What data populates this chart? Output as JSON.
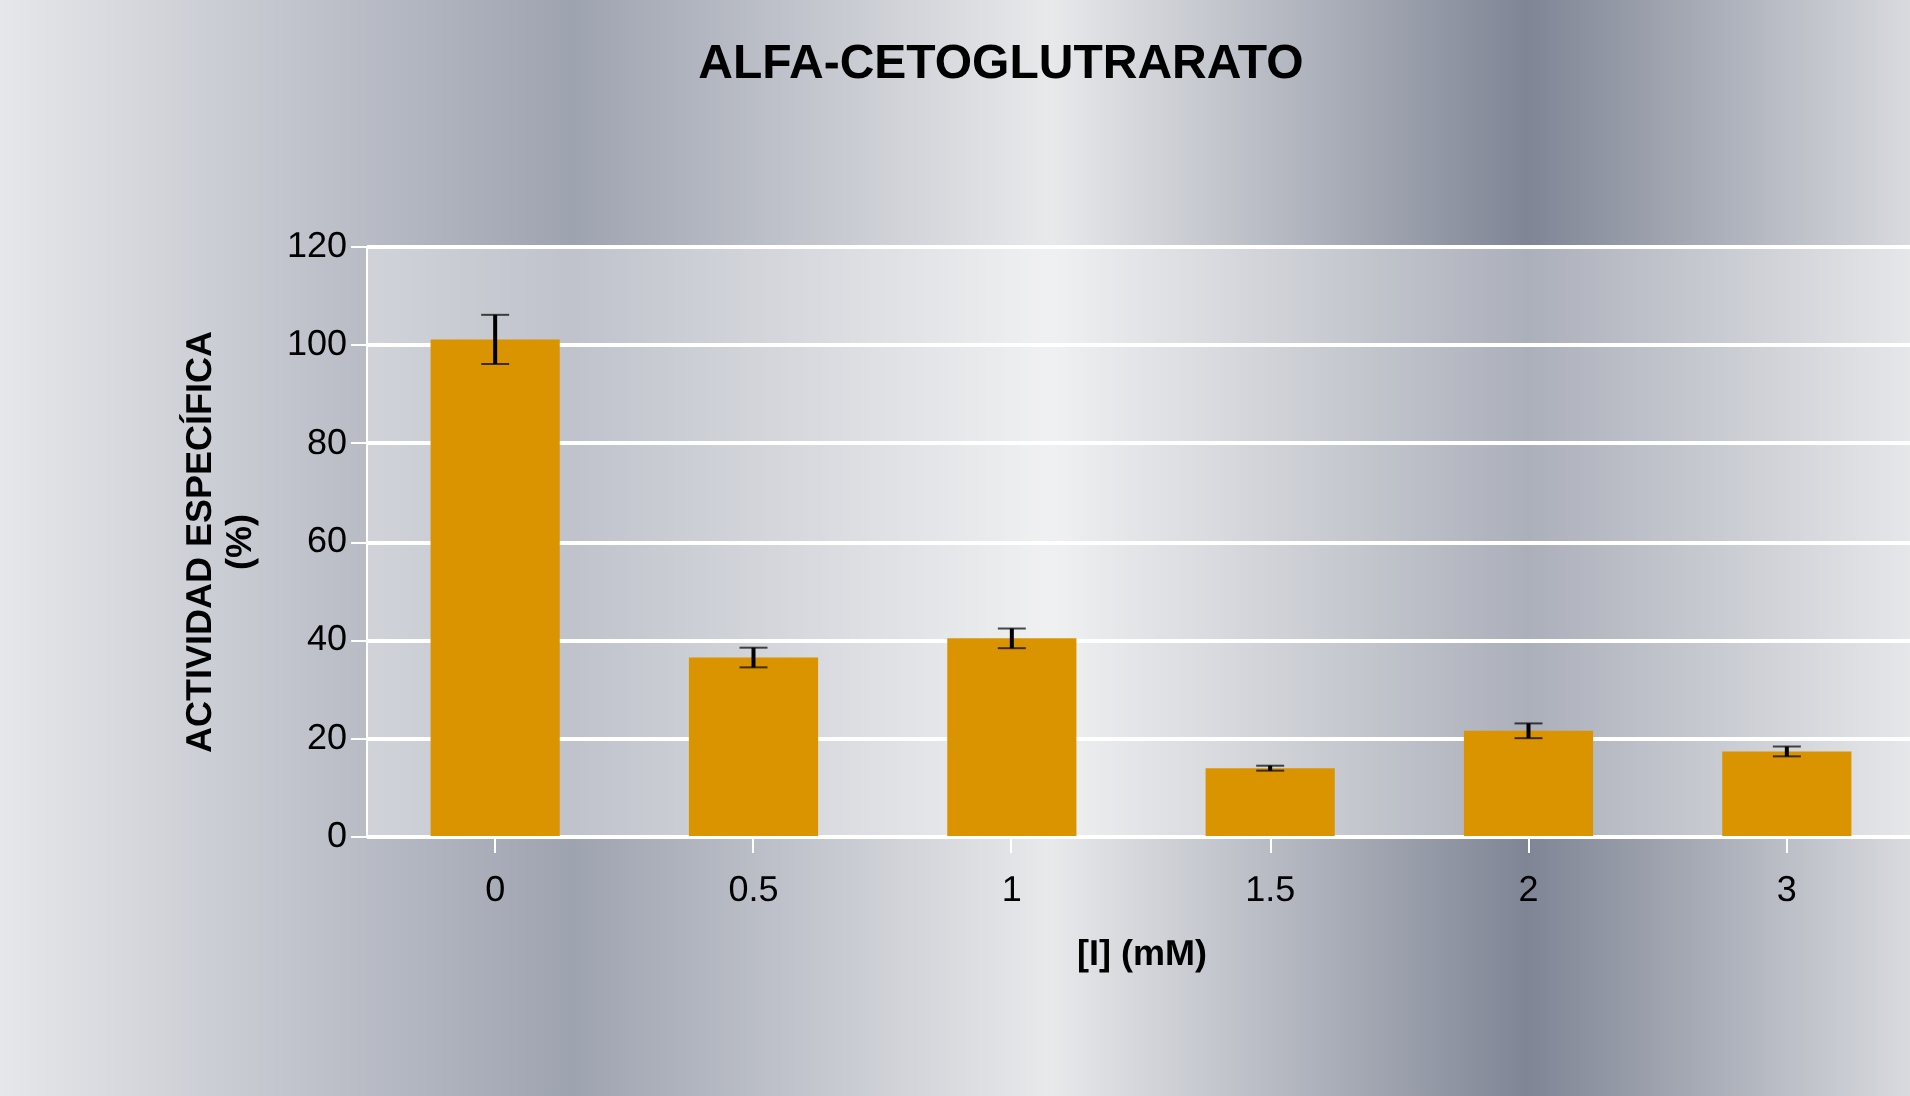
{
  "chart_data": {
    "type": "bar",
    "title": "ALFA-CETOGLUTRARATO",
    "xlabel": "[I] (mM)",
    "ylabel": "ACTIVIDAD ESPECÍFICA (%)",
    "categories": [
      "0",
      "0.5",
      "1",
      "1.5",
      "2",
      "3"
    ],
    "values": [
      101,
      36.3,
      40.2,
      13.8,
      21.4,
      17.2
    ],
    "errors": [
      5,
      2,
      2,
      0.5,
      1.5,
      1
    ],
    "color": "#d99400",
    "ylim": [
      0,
      120
    ],
    "yticks": [
      0,
      20,
      40,
      60,
      80,
      100,
      120
    ],
    "grid": "y"
  }
}
